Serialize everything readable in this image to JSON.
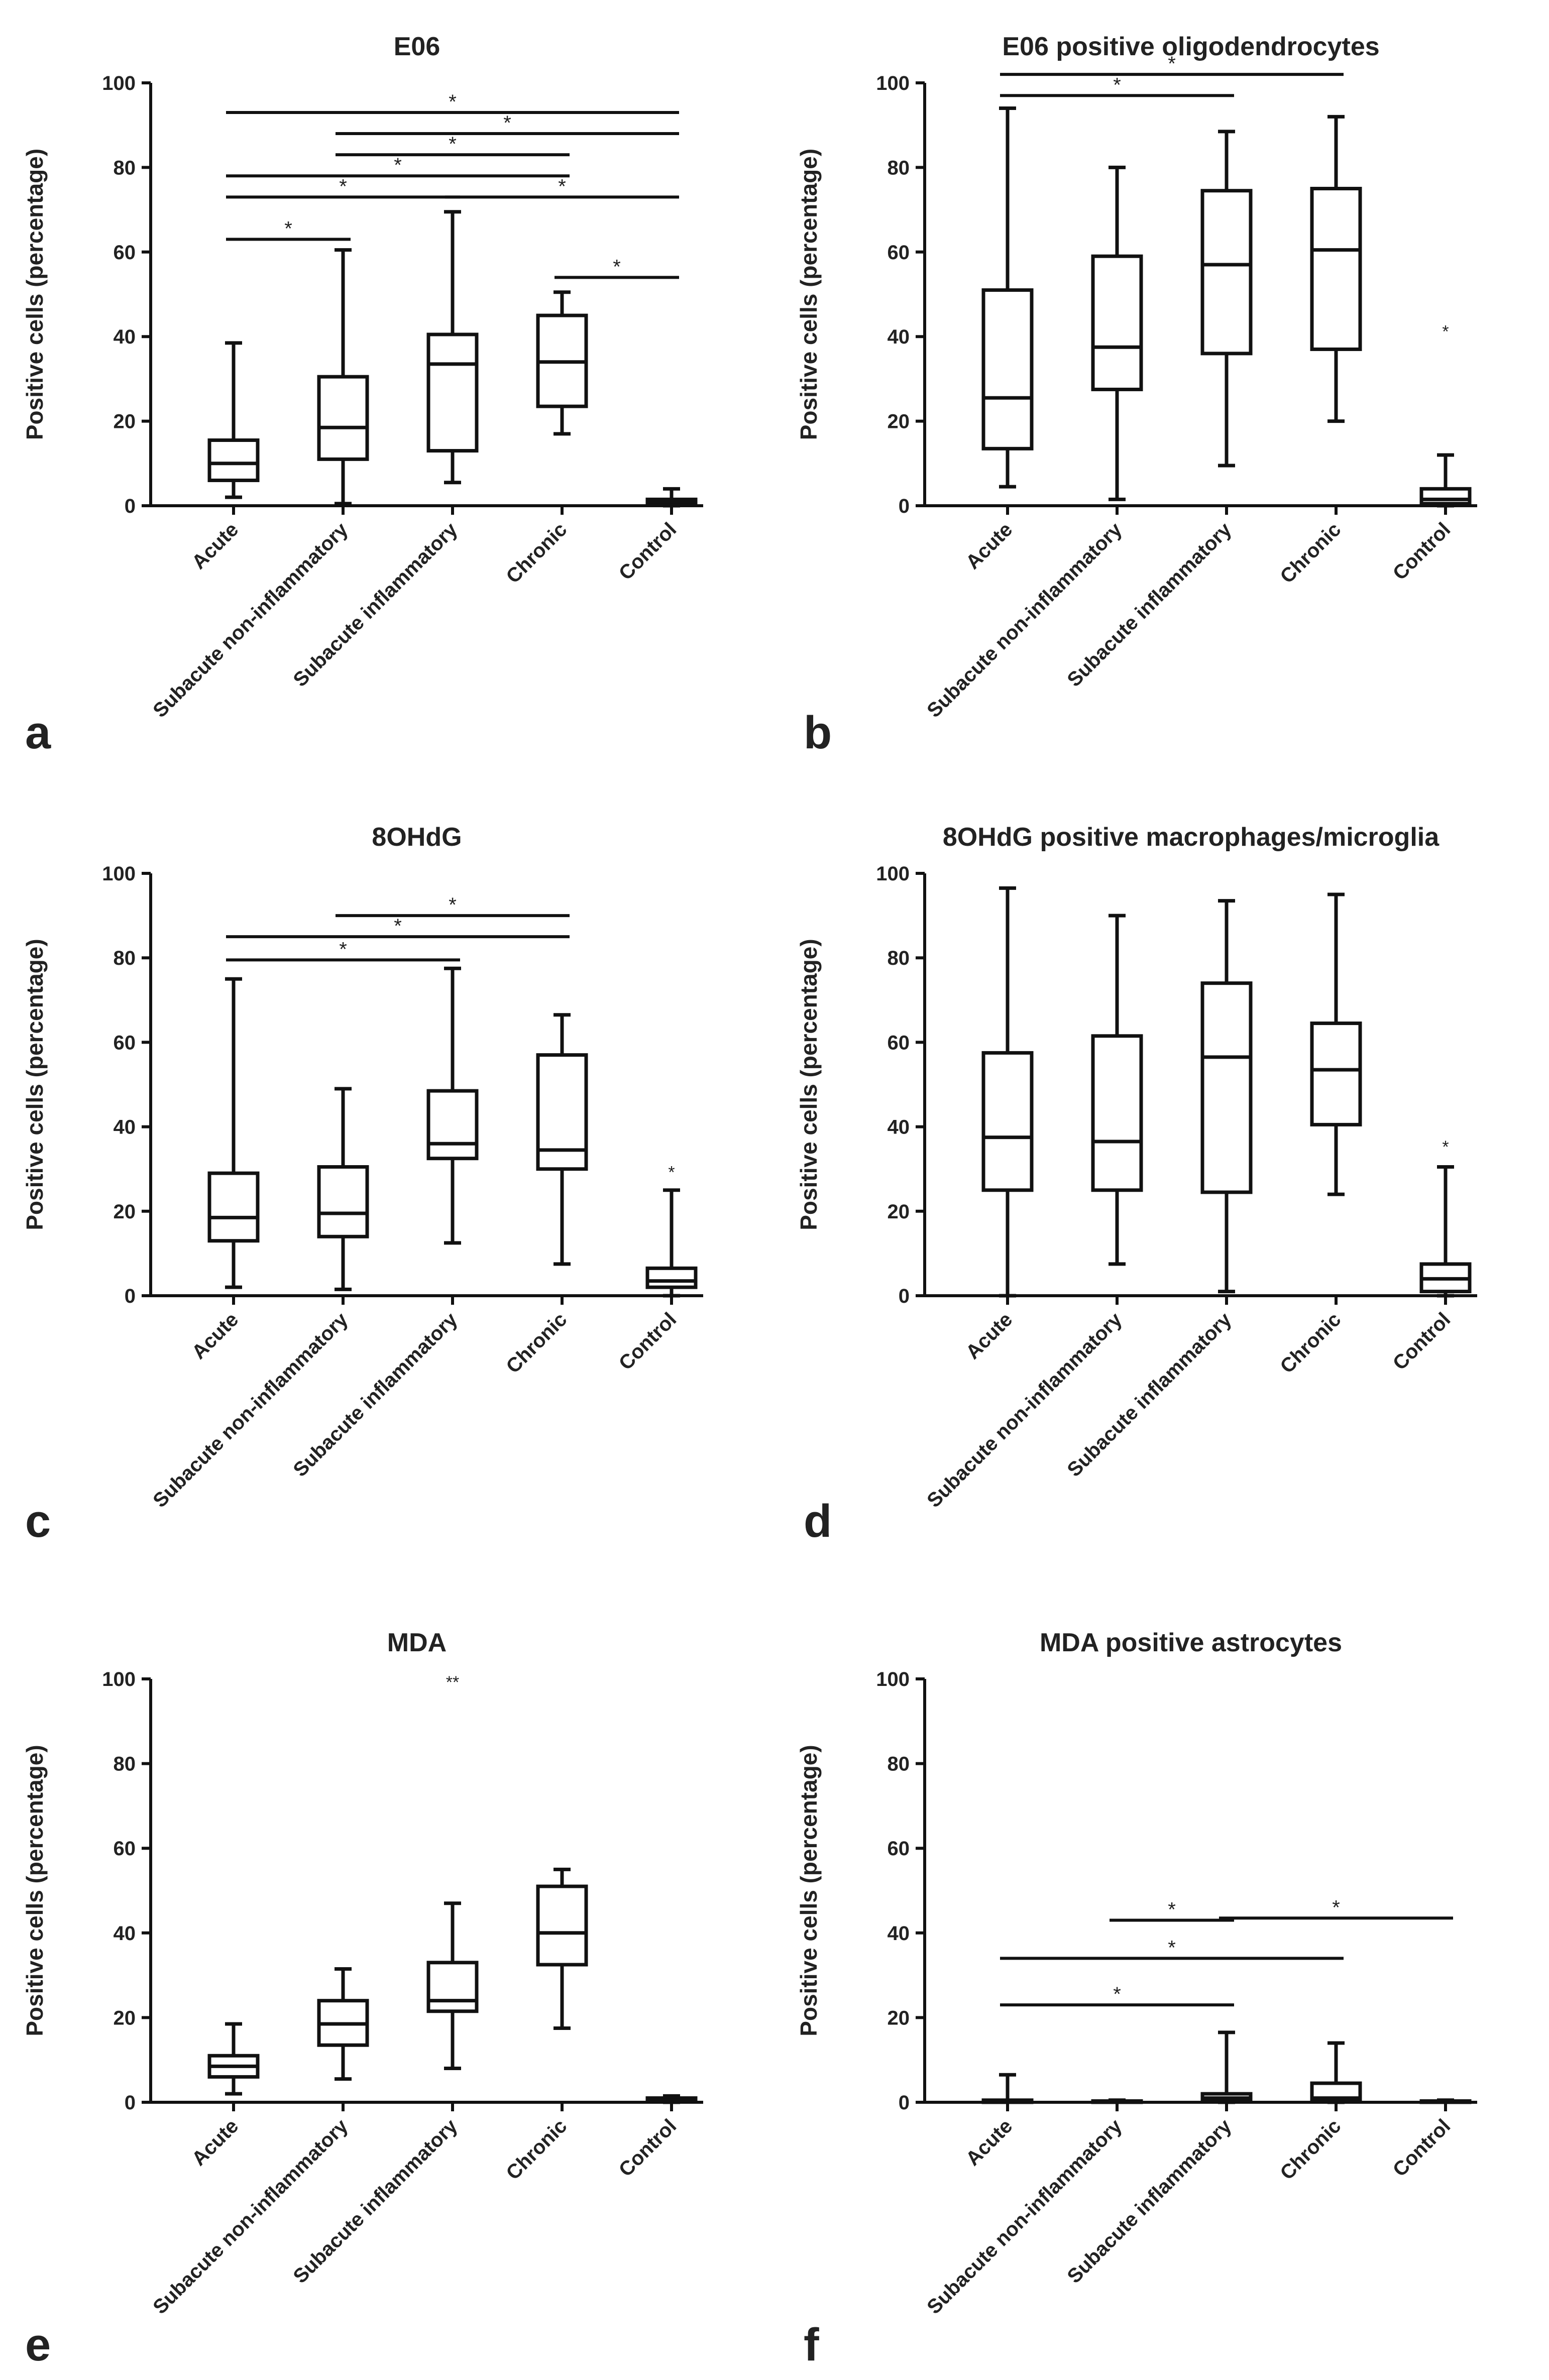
{
  "figure": {
    "y_axis_label": "Positive cells (percentage)",
    "categories": [
      "Acute",
      "Subacute non-inflammatory",
      "Subacute inflammatory",
      "Chronic",
      "Control"
    ]
  },
  "chart_data": [
    {
      "panel": "a",
      "type": "box",
      "title": "E06",
      "ylabel": "Positive cells (percentage)",
      "ylim": [
        0,
        100
      ],
      "yticks": [
        0,
        20,
        40,
        60,
        80,
        100
      ],
      "categories": [
        "Acute",
        "Subacute non-inflammatory",
        "Subacute inflammatory",
        "Chronic",
        "Control"
      ],
      "boxes": [
        {
          "min": 2,
          "q1": 6,
          "median": 10,
          "q3": 15.5,
          "max": 38.5
        },
        {
          "min": 0.5,
          "q1": 11,
          "median": 18.5,
          "q3": 30.5,
          "max": 60.5
        },
        {
          "min": 5.5,
          "q1": 13,
          "median": 33.5,
          "q3": 40.5,
          "max": 69.5
        },
        {
          "min": 17,
          "q1": 23.5,
          "median": 34,
          "q3": 45,
          "max": 50.5
        },
        {
          "min": 0,
          "q1": 0.5,
          "median": 1,
          "q3": 1.5,
          "max": 4
        }
      ],
      "outliers": [],
      "significance": [
        {
          "from": 0,
          "to": 4,
          "y": 93,
          "label": "*"
        },
        {
          "from": 1,
          "to": 4,
          "y": 88,
          "label": "*"
        },
        {
          "from": 1,
          "to": 3,
          "y": 83,
          "label": "*"
        },
        {
          "from": 0,
          "to": 3,
          "y": 78,
          "label": "*"
        },
        {
          "from": 0,
          "to": 2,
          "y": 73,
          "label": "*"
        },
        {
          "from": 2,
          "to": 4,
          "y": 73,
          "label": "*"
        },
        {
          "from": 0,
          "to": 1,
          "y": 63,
          "label": "*"
        },
        {
          "from": 3,
          "to": 4,
          "y": 54,
          "label": "*"
        }
      ]
    },
    {
      "panel": "b",
      "type": "box",
      "title": "E06 positive oligodendrocytes",
      "ylabel": "Positive cells (percentage)",
      "ylim": [
        0,
        100
      ],
      "yticks": [
        0,
        20,
        40,
        60,
        80,
        100
      ],
      "categories": [
        "Acute",
        "Subacute non-inflammatory",
        "Subacute inflammatory",
        "Chronic",
        "Control"
      ],
      "boxes": [
        {
          "min": 4.5,
          "q1": 13.5,
          "median": 25.5,
          "q3": 51,
          "max": 94
        },
        {
          "min": 1.5,
          "q1": 27.5,
          "median": 37.5,
          "q3": 59,
          "max": 80
        },
        {
          "min": 9.5,
          "q1": 36,
          "median": 57,
          "q3": 74.5,
          "max": 88.5
        },
        {
          "min": 20,
          "q1": 37,
          "median": 60.5,
          "q3": 75,
          "max": 92
        },
        {
          "min": 0,
          "q1": 0.5,
          "median": 1.5,
          "q3": 4,
          "max": 12
        }
      ],
      "outliers": [
        {
          "category": 4,
          "value": 42,
          "label": "*"
        }
      ],
      "significance": [
        {
          "from": 0,
          "to": 3,
          "y": 102,
          "label": "*"
        },
        {
          "from": 0,
          "to": 2,
          "y": 97,
          "label": "*"
        }
      ]
    },
    {
      "panel": "c",
      "type": "box",
      "title": "8OHdG",
      "ylabel": "Positive cells (percentage)",
      "ylim": [
        0,
        100
      ],
      "yticks": [
        0,
        20,
        40,
        60,
        80,
        100
      ],
      "categories": [
        "Acute",
        "Subacute non-inflammatory",
        "Subacute inflammatory",
        "Chronic",
        "Control"
      ],
      "boxes": [
        {
          "min": 2,
          "q1": 13,
          "median": 18.5,
          "q3": 29,
          "max": 75
        },
        {
          "min": 1.5,
          "q1": 14,
          "median": 19.5,
          "q3": 30.5,
          "max": 49
        },
        {
          "min": 12.5,
          "q1": 32.5,
          "median": 36,
          "q3": 48.5,
          "max": 77.5
        },
        {
          "min": 7.5,
          "q1": 30,
          "median": 34.5,
          "q3": 57,
          "max": 66.5
        },
        {
          "min": 0,
          "q1": 2,
          "median": 3.5,
          "q3": 6.5,
          "max": 25
        }
      ],
      "outliers": [
        {
          "category": 4,
          "value": 30,
          "label": "*"
        }
      ],
      "significance": [
        {
          "from": 1,
          "to": 3,
          "y": 90,
          "label": "*"
        },
        {
          "from": 0,
          "to": 3,
          "y": 85,
          "label": "*"
        },
        {
          "from": 0,
          "to": 2,
          "y": 79.5,
          "label": "*"
        }
      ]
    },
    {
      "panel": "d",
      "type": "box",
      "title": "8OHdG positive macrophages/microglia",
      "ylabel": "Positive cells (percentage)",
      "ylim": [
        0,
        100
      ],
      "yticks": [
        0,
        20,
        40,
        60,
        80,
        100
      ],
      "categories": [
        "Acute",
        "Subacute non-inflammatory",
        "Subacute inflammatory",
        "Chronic",
        "Control"
      ],
      "boxes": [
        {
          "min": 0,
          "q1": 25,
          "median": 37.5,
          "q3": 57.5,
          "max": 96.5
        },
        {
          "min": 7.5,
          "q1": 25,
          "median": 36.5,
          "q3": 61.5,
          "max": 90
        },
        {
          "min": 1,
          "q1": 24.5,
          "median": 56.5,
          "q3": 74,
          "max": 93.5
        },
        {
          "min": 24,
          "q1": 40.5,
          "median": 53.5,
          "q3": 64.5,
          "max": 95
        },
        {
          "min": 0,
          "q1": 1,
          "median": 4,
          "q3": 7.5,
          "max": 30.5
        }
      ],
      "outliers": [
        {
          "category": 4,
          "value": 36,
          "label": "*"
        }
      ],
      "significance": []
    },
    {
      "panel": "e",
      "type": "box",
      "title": "MDA",
      "ylabel": "Positive cells (percentage)",
      "ylim": [
        0,
        100
      ],
      "yticks": [
        0,
        20,
        40,
        60,
        80,
        100
      ],
      "categories": [
        "Acute",
        "Subacute non-inflammatory",
        "Subacute inflammatory",
        "Chronic",
        "Control"
      ],
      "boxes": [
        {
          "min": 2,
          "q1": 6,
          "median": 8.5,
          "q3": 11,
          "max": 18.5
        },
        {
          "min": 5.5,
          "q1": 13.5,
          "median": 18.5,
          "q3": 24,
          "max": 31.5
        },
        {
          "min": 8,
          "q1": 21.5,
          "median": 24,
          "q3": 33,
          "max": 47
        },
        {
          "min": 17.5,
          "q1": 32.5,
          "median": 40,
          "q3": 51,
          "max": 55
        },
        {
          "min": 0,
          "q1": 0.2,
          "median": 0.5,
          "q3": 1,
          "max": 1.5
        }
      ],
      "outliers": [
        {
          "category": 2,
          "value": 100,
          "label": "**"
        }
      ],
      "significance": []
    },
    {
      "panel": "f",
      "type": "box",
      "title": "MDA positive astrocytes",
      "ylabel": "Positive cells (percentage)",
      "ylim": [
        0,
        100
      ],
      "yticks": [
        0,
        20,
        40,
        60,
        80,
        100
      ],
      "categories": [
        "Acute",
        "Subacute non-inflammatory",
        "Subacute inflammatory",
        "Chronic",
        "Control"
      ],
      "boxes": [
        {
          "min": 0,
          "q1": 0,
          "median": 0.2,
          "q3": 0.5,
          "max": 6.5
        },
        {
          "min": 0,
          "q1": 0,
          "median": 0,
          "q3": 0.3,
          "max": 0.5
        },
        {
          "min": 0,
          "q1": 0.5,
          "median": 1,
          "q3": 2,
          "max": 16.5
        },
        {
          "min": 0,
          "q1": 0.5,
          "median": 1,
          "q3": 4.5,
          "max": 14
        },
        {
          "min": 0,
          "q1": 0,
          "median": 0,
          "q3": 0.3,
          "max": 0.5
        }
      ],
      "outliers": [],
      "significance": [
        {
          "from": 1,
          "to": 2,
          "y": 43,
          "label": "*"
        },
        {
          "from": 2,
          "to": 4,
          "y": 43.5,
          "label": "*"
        },
        {
          "from": 0,
          "to": 3,
          "y": 34,
          "label": "*"
        },
        {
          "from": 0,
          "to": 2,
          "y": 23,
          "label": "*"
        }
      ]
    }
  ]
}
